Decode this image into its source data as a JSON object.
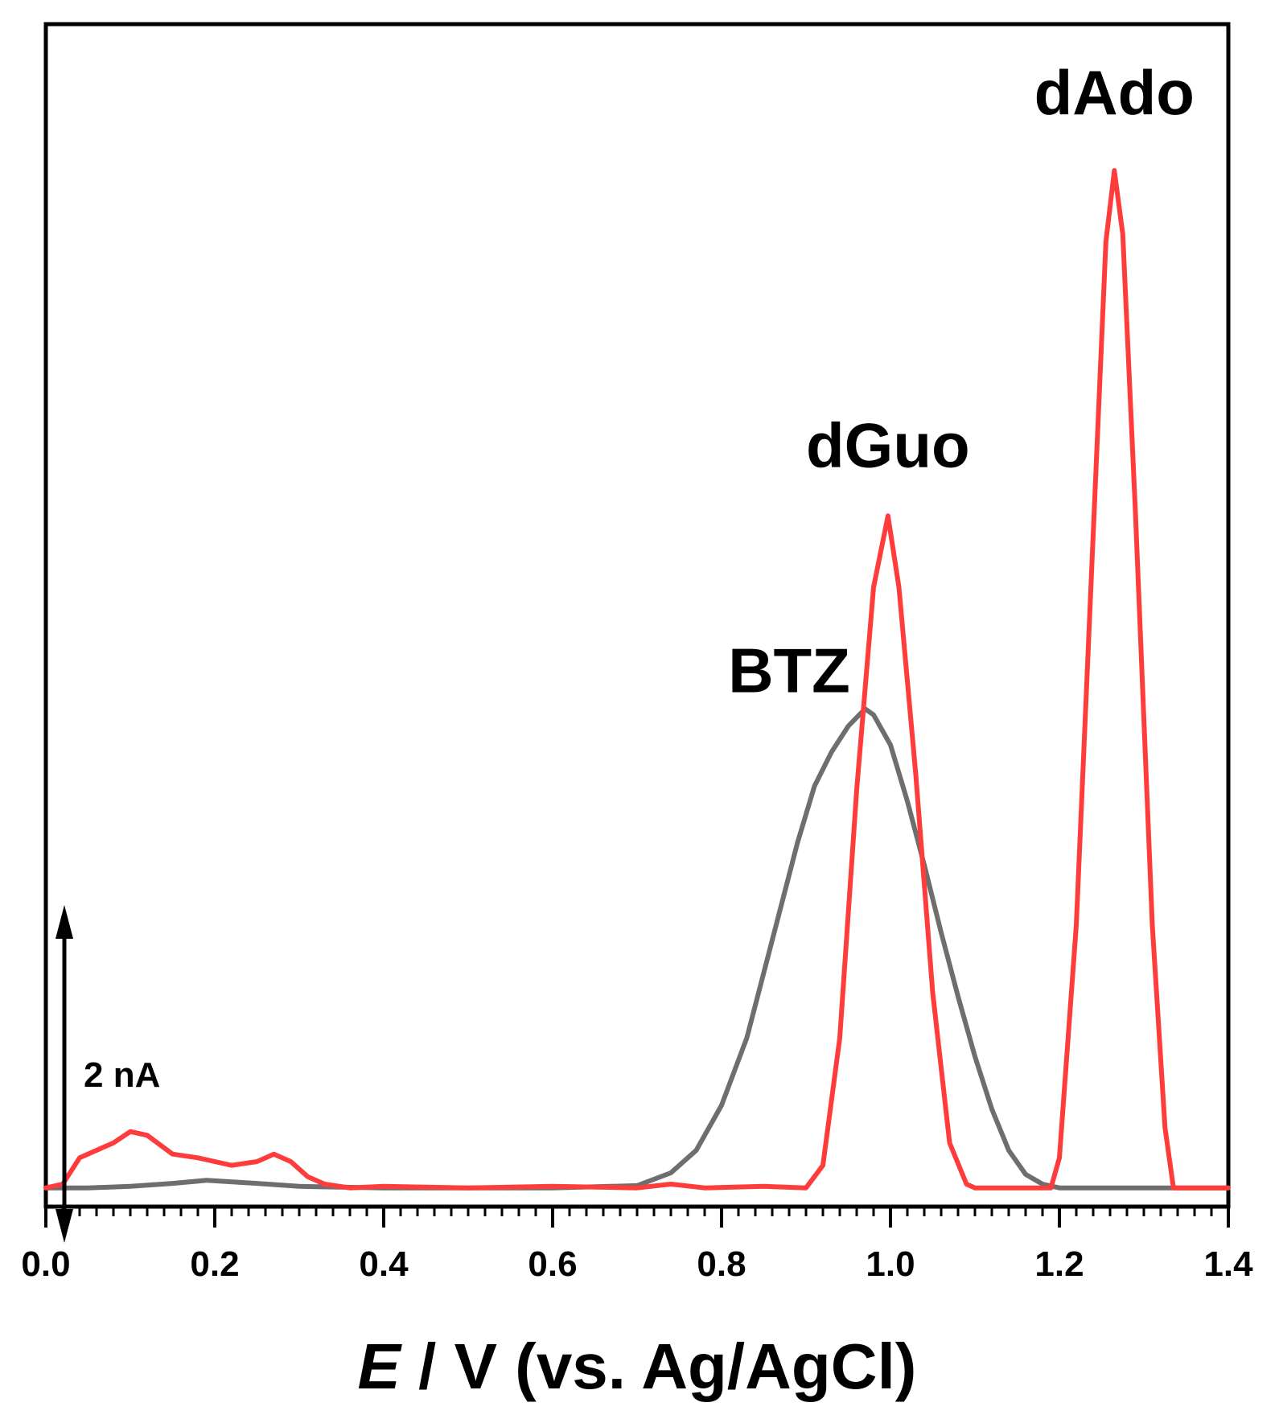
{
  "chart_data": {
    "type": "line",
    "xlabel_italic": "E",
    "xlabel_rest": " / V (vs. Ag/AgCl)",
    "xlim": [
      0.0,
      1.4
    ],
    "ylim": [
      -0.25,
      15.5
    ],
    "x_ticks": [
      "0.0",
      "0.2",
      "0.4",
      "0.6",
      "0.8",
      "1.0",
      "1.2",
      "1.4"
    ],
    "grid": false,
    "legend": "none",
    "scale_bar": {
      "label": "2 nA",
      "value": 4.5
    },
    "annotations": [
      {
        "text": "dAdo",
        "x": 1.265,
        "y": 14.3
      },
      {
        "text": "dGuo",
        "x": 0.997,
        "y": 9.6
      },
      {
        "text": "BTZ",
        "x": 0.88,
        "y": 6.6
      }
    ],
    "series": [
      {
        "color": "#6e6e6e",
        "points": [
          [
            0.0,
            0.0
          ],
          [
            0.05,
            0.0
          ],
          [
            0.1,
            0.02
          ],
          [
            0.15,
            0.06
          ],
          [
            0.19,
            0.1
          ],
          [
            0.25,
            0.06
          ],
          [
            0.3,
            0.02
          ],
          [
            0.4,
            0.0
          ],
          [
            0.5,
            0.0
          ],
          [
            0.6,
            0.0
          ],
          [
            0.7,
            0.03
          ],
          [
            0.74,
            0.2
          ],
          [
            0.77,
            0.5
          ],
          [
            0.8,
            1.1
          ],
          [
            0.83,
            2.0
          ],
          [
            0.86,
            3.3
          ],
          [
            0.89,
            4.6
          ],
          [
            0.91,
            5.35
          ],
          [
            0.93,
            5.8
          ],
          [
            0.95,
            6.15
          ],
          [
            0.97,
            6.38
          ],
          [
            0.98,
            6.3
          ],
          [
            1.0,
            5.9
          ],
          [
            1.02,
            5.15
          ],
          [
            1.04,
            4.3
          ],
          [
            1.06,
            3.4
          ],
          [
            1.08,
            2.55
          ],
          [
            1.1,
            1.75
          ],
          [
            1.12,
            1.05
          ],
          [
            1.14,
            0.5
          ],
          [
            1.16,
            0.18
          ],
          [
            1.18,
            0.05
          ],
          [
            1.2,
            0.0
          ],
          [
            1.3,
            0.0
          ],
          [
            1.4,
            0.0
          ]
        ]
      },
      {
        "color": "#ff3c3c",
        "points": [
          [
            0.0,
            0.0
          ],
          [
            0.02,
            0.05
          ],
          [
            0.04,
            0.4
          ],
          [
            0.06,
            0.5
          ],
          [
            0.08,
            0.6
          ],
          [
            0.1,
            0.75
          ],
          [
            0.12,
            0.7
          ],
          [
            0.15,
            0.45
          ],
          [
            0.18,
            0.4
          ],
          [
            0.2,
            0.35
          ],
          [
            0.22,
            0.3
          ],
          [
            0.25,
            0.35
          ],
          [
            0.27,
            0.45
          ],
          [
            0.29,
            0.35
          ],
          [
            0.31,
            0.15
          ],
          [
            0.33,
            0.05
          ],
          [
            0.36,
            0.0
          ],
          [
            0.4,
            0.02
          ],
          [
            0.5,
            0.0
          ],
          [
            0.6,
            0.02
          ],
          [
            0.7,
            0.0
          ],
          [
            0.74,
            0.05
          ],
          [
            0.78,
            0.0
          ],
          [
            0.85,
            0.02
          ],
          [
            0.9,
            0.0
          ],
          [
            0.92,
            0.3
          ],
          [
            0.94,
            2.0
          ],
          [
            0.96,
            5.3
          ],
          [
            0.98,
            8.0
          ],
          [
            0.997,
            8.95
          ],
          [
            1.01,
            8.0
          ],
          [
            1.03,
            5.5
          ],
          [
            1.05,
            2.6
          ],
          [
            1.07,
            0.6
          ],
          [
            1.09,
            0.05
          ],
          [
            1.1,
            0.0
          ],
          [
            1.19,
            0.0
          ],
          [
            1.2,
            0.4
          ],
          [
            1.22,
            3.5
          ],
          [
            1.24,
            8.7
          ],
          [
            1.255,
            12.6
          ],
          [
            1.265,
            13.55
          ],
          [
            1.275,
            12.7
          ],
          [
            1.29,
            9.0
          ],
          [
            1.31,
            3.5
          ],
          [
            1.325,
            0.8
          ],
          [
            1.335,
            0.0
          ],
          [
            1.4,
            0.0
          ]
        ]
      }
    ]
  }
}
